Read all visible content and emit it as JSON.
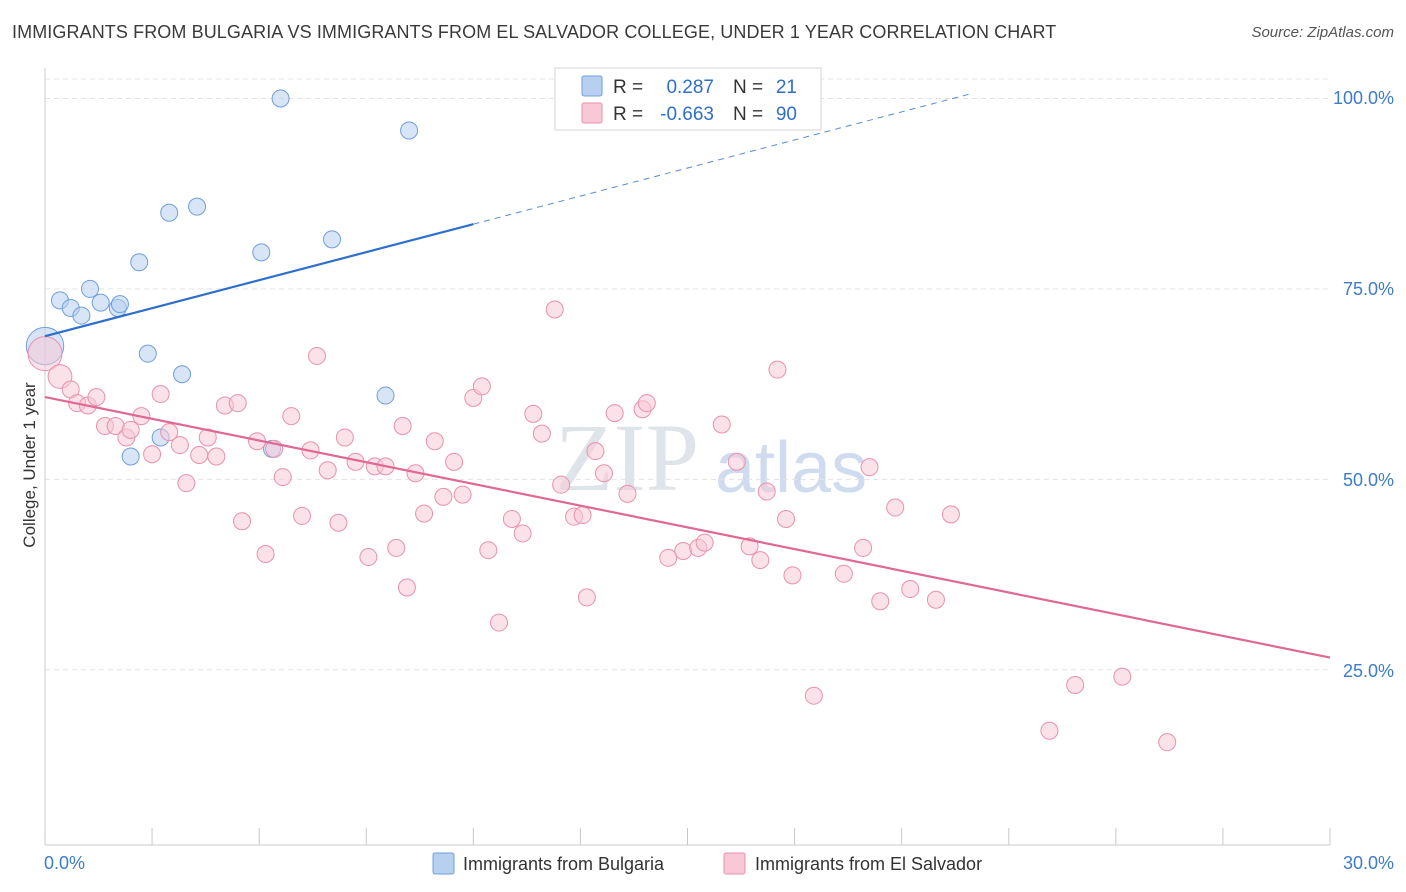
{
  "title": "IMMIGRANTS FROM BULGARIA VS IMMIGRANTS FROM EL SALVADOR COLLEGE, UNDER 1 YEAR CORRELATION CHART",
  "source": "Source: ZipAtlas.com",
  "watermark": {
    "zip": "ZIP",
    "atlas": "atlas"
  },
  "colors": {
    "bulgaria_fill": "#b7d0f0",
    "bulgaria_stroke": "#6f9fdc",
    "bulgaria_line": "#2e6fcc",
    "elsalvador_fill": "#f8c8d6",
    "elsalvador_stroke": "#e991ae",
    "elsalvador_line": "#e06895",
    "tick_text": "#3d7cc9",
    "grid": "#e3e3e3"
  },
  "legend_top": {
    "rows": [
      {
        "r_label": "R =",
        "r_value": "0.287",
        "n_label": "N =",
        "n_value": "21"
      },
      {
        "r_label": "R =",
        "r_value": "-0.663",
        "n_label": "N =",
        "n_value": "90"
      }
    ]
  },
  "chart_data": {
    "type": "scatter",
    "title": "IMMIGRANTS FROM BULGARIA VS IMMIGRANTS FROM EL SALVADOR COLLEGE, UNDER 1 YEAR CORRELATION CHART",
    "xlabel": "",
    "ylabel": "College, Under 1 year",
    "xlim": [
      0,
      30
    ],
    "ylim": [
      2,
      104
    ],
    "x_tick_labels": [
      "0.0%",
      "30.0%"
    ],
    "y_tick_labels": [
      "100.0%",
      "75.0%",
      "50.0%",
      "25.0%"
    ],
    "y_ticks": [
      100,
      75,
      50,
      25
    ],
    "series": [
      {
        "name": "Immigrants from Bulgaria",
        "r": 0.287,
        "n": 21,
        "points": [
          [
            0.0,
            67.5,
            2.2
          ],
          [
            0.35,
            73.5,
            1
          ],
          [
            0.6,
            72.5,
            1
          ],
          [
            0.85,
            71.5,
            1
          ],
          [
            1.05,
            75.0,
            1
          ],
          [
            1.3,
            73.2,
            1
          ],
          [
            1.7,
            72.5,
            1
          ],
          [
            1.75,
            73.0,
            1
          ],
          [
            2.2,
            78.5,
            1
          ],
          [
            2.4,
            66.5,
            1
          ],
          [
            2.0,
            53.0,
            1
          ],
          [
            2.7,
            55.5,
            1
          ],
          [
            2.9,
            85.0,
            1
          ],
          [
            3.2,
            63.8,
            1
          ],
          [
            3.55,
            85.8,
            1
          ],
          [
            5.05,
            79.8,
            1
          ],
          [
            5.3,
            54.0,
            1
          ],
          [
            5.5,
            100.0,
            1
          ],
          [
            6.7,
            81.5,
            1
          ],
          [
            7.95,
            61.0,
            1
          ],
          [
            8.5,
            95.8,
            1
          ]
        ],
        "trend": {
          "x0": 0.0,
          "y0": 68.8,
          "x1": 10.0,
          "y1": 83.5,
          "dashed_to_x": 21.6,
          "dashed_to_y": 100.6
        }
      },
      {
        "name": "Immigrants from El Salvador",
        "r": -0.663,
        "n": 90,
        "points": [
          [
            0.0,
            66.5,
            2.0
          ],
          [
            0.35,
            63.5,
            1.4
          ],
          [
            0.6,
            61.8,
            1
          ],
          [
            0.75,
            60.0,
            1
          ],
          [
            1.0,
            59.7,
            1
          ],
          [
            1.2,
            60.8,
            1
          ],
          [
            1.4,
            57.0,
            1
          ],
          [
            1.65,
            57.0,
            1
          ],
          [
            1.9,
            55.5,
            1
          ],
          [
            2.0,
            56.5,
            1
          ],
          [
            2.25,
            58.3,
            1
          ],
          [
            2.5,
            53.3,
            1
          ],
          [
            2.7,
            61.2,
            1
          ],
          [
            2.9,
            56.2,
            1
          ],
          [
            3.15,
            54.5,
            1
          ],
          [
            3.3,
            49.5,
            1
          ],
          [
            3.6,
            53.2,
            1
          ],
          [
            3.8,
            55.5,
            1
          ],
          [
            4.0,
            53.0,
            1
          ],
          [
            4.2,
            59.7,
            1
          ],
          [
            4.5,
            60.0,
            1
          ],
          [
            4.6,
            44.5,
            1
          ],
          [
            4.95,
            55.0,
            1
          ],
          [
            5.15,
            40.2,
            1
          ],
          [
            5.35,
            54.0,
            1
          ],
          [
            5.55,
            50.3,
            1
          ],
          [
            5.75,
            58.3,
            1
          ],
          [
            6.0,
            45.2,
            1
          ],
          [
            6.2,
            53.8,
            1
          ],
          [
            6.35,
            66.2,
            1
          ],
          [
            6.6,
            51.2,
            1
          ],
          [
            6.85,
            44.3,
            1
          ],
          [
            7.0,
            55.5,
            1
          ],
          [
            7.25,
            52.3,
            1
          ],
          [
            7.55,
            39.8,
            1
          ],
          [
            7.7,
            51.7,
            1
          ],
          [
            7.95,
            51.7,
            1
          ],
          [
            8.2,
            41.0,
            1
          ],
          [
            8.35,
            57.0,
            1
          ],
          [
            8.45,
            35.8,
            1
          ],
          [
            8.65,
            50.8,
            1
          ],
          [
            8.85,
            45.5,
            1
          ],
          [
            9.1,
            55.0,
            1
          ],
          [
            9.3,
            47.7,
            1
          ],
          [
            9.55,
            52.3,
            1
          ],
          [
            9.75,
            48.0,
            1
          ],
          [
            10.0,
            60.7,
            1
          ],
          [
            10.2,
            62.2,
            1
          ],
          [
            10.35,
            40.7,
            1
          ],
          [
            10.6,
            31.2,
            1
          ],
          [
            10.9,
            44.8,
            1
          ],
          [
            11.15,
            42.9,
            1
          ],
          [
            11.4,
            58.6,
            1
          ],
          [
            11.6,
            56.0,
            1
          ],
          [
            11.9,
            72.3,
            1
          ],
          [
            12.05,
            49.3,
            1
          ],
          [
            12.35,
            45.1,
            1
          ],
          [
            12.55,
            45.3,
            1
          ],
          [
            12.65,
            34.5,
            1
          ],
          [
            12.85,
            53.7,
            1
          ],
          [
            13.05,
            50.8,
            1
          ],
          [
            13.3,
            58.7,
            1
          ],
          [
            13.6,
            48.1,
            1
          ],
          [
            13.95,
            59.2,
            1
          ],
          [
            14.05,
            60.0,
            1
          ],
          [
            14.55,
            39.7,
            1
          ],
          [
            14.9,
            40.6,
            1
          ],
          [
            15.25,
            41.0,
            1
          ],
          [
            15.4,
            41.7,
            1
          ],
          [
            15.8,
            57.2,
            1
          ],
          [
            16.15,
            52.3,
            1
          ],
          [
            16.45,
            41.2,
            1
          ],
          [
            16.7,
            39.4,
            1
          ],
          [
            16.85,
            48.4,
            1
          ],
          [
            17.1,
            64.4,
            1
          ],
          [
            17.3,
            44.8,
            1
          ],
          [
            17.45,
            37.4,
            1
          ],
          [
            17.95,
            21.6,
            1
          ],
          [
            18.65,
            37.6,
            1
          ],
          [
            19.1,
            41.0,
            1
          ],
          [
            19.25,
            51.6,
            1
          ],
          [
            19.5,
            34.0,
            1
          ],
          [
            19.85,
            46.3,
            1
          ],
          [
            20.2,
            35.6,
            1
          ],
          [
            20.8,
            34.2,
            1
          ],
          [
            21.15,
            45.4,
            1
          ],
          [
            23.45,
            17.0,
            1
          ],
          [
            24.05,
            23.0,
            1
          ],
          [
            25.15,
            24.1,
            1
          ],
          [
            26.2,
            15.5,
            1
          ]
        ],
        "trend": {
          "x0": 0.0,
          "y0": 60.8,
          "x1": 30.0,
          "y1": 26.6
        }
      }
    ]
  }
}
